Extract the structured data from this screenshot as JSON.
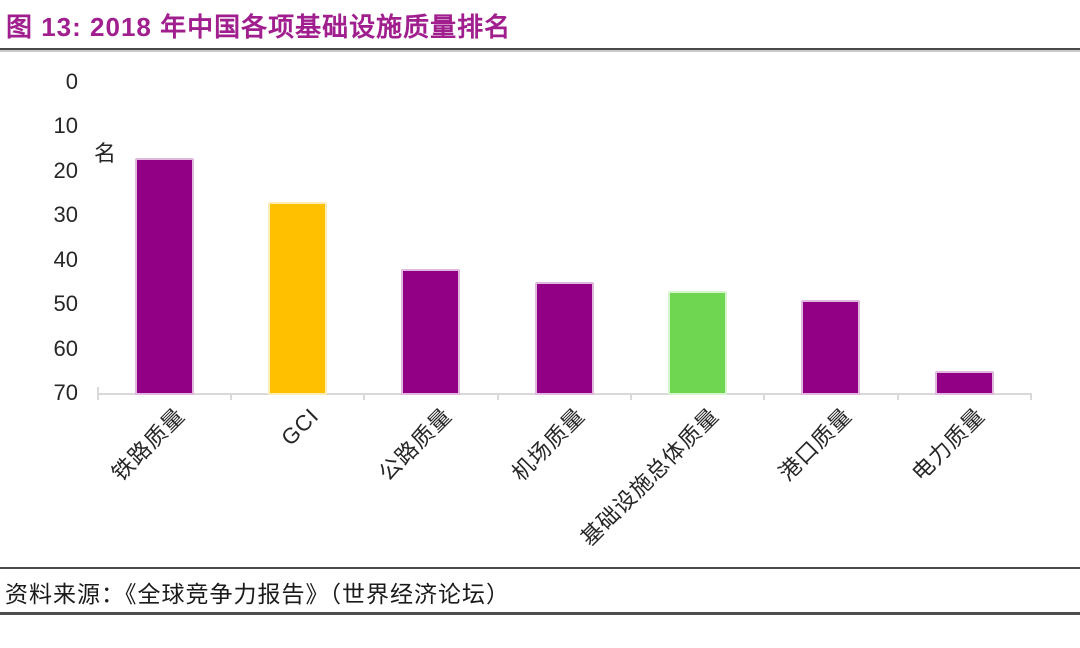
{
  "header": {
    "figure_label": "图 13:",
    "title": "图 13: 2018 年中国各项基础设施质量排名"
  },
  "chart_data": {
    "type": "bar",
    "title": "2018 年中国各项基础设施质量排名",
    "unit_label": "名",
    "categories": [
      "铁路质量",
      "GCI",
      "公路质量",
      "机场质量",
      "基础设施总体质量",
      "港口质量",
      "电力质量"
    ],
    "values": [
      17,
      27,
      42,
      45,
      47,
      49,
      65
    ],
    "bar_colors": [
      "#920086",
      "#FFC000",
      "#920086",
      "#920086",
      "#6ED650",
      "#920086",
      "#920086"
    ],
    "xlabel": "",
    "ylabel": "名 (排名)",
    "ylim": [
      0,
      70
    ],
    "yticks": [
      0,
      10,
      20,
      30,
      40,
      50,
      60,
      70
    ],
    "y_axis_inverted": true,
    "grid": false,
    "legend_position": "none",
    "axis_line_color": "#D9D9D9",
    "label_color": "#262626"
  },
  "colors": {
    "title_accent": "#A01E8E",
    "purple_bar": "#920086",
    "gold_bar": "#FFC000",
    "green_bar": "#6ED650",
    "divider": "#4a4a4a"
  },
  "footer": {
    "source": "资料来源：《全球竞争力报告》（世界经济论坛）"
  }
}
